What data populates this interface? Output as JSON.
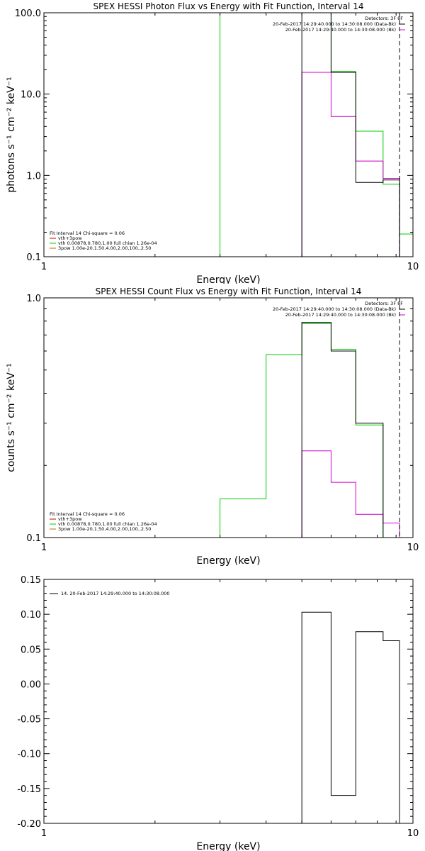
{
  "colors": {
    "black": "#000000",
    "magenta": "#cc00cc",
    "green": "#00cc00",
    "orange": "#cc6600",
    "red": "#cc0000"
  },
  "chart_data": [
    {
      "id": "photon",
      "type": "line",
      "title": "SPEX HESSI Photon Flux vs Energy with Fit Function, Interval 14",
      "xlabel": "Energy (keV)",
      "ylabel": "photons s⁻¹ cm⁻² keV⁻¹",
      "xscale": "log",
      "yscale": "log",
      "xlim": [
        1,
        10
      ],
      "ylim": [
        0.1,
        100
      ],
      "xticks": [
        {
          "v": 1,
          "label": "1"
        },
        {
          "v": 10,
          "label": "10"
        }
      ],
      "yticks": [
        {
          "v": 0.1,
          "label": "0.1"
        },
        {
          "v": 1,
          "label": "1.0"
        },
        {
          "v": 10,
          "label": "10.0"
        },
        {
          "v": 100,
          "label": "100.0"
        }
      ],
      "detectors_label": "Detectors: 3F 8F",
      "legend_right": [
        {
          "text": "20-Feb-2017 14:29:40.000 to 14:30:08.000 (Data-Bk)",
          "color": "#000000"
        },
        {
          "text": "20-Feb-2017 14:29:40.000 to 14:30:08.000 (Bk)",
          "color": "#cc00cc"
        }
      ],
      "fit_header": "Fit Interval 14   Chi-square = 0.06",
      "legend_left": [
        {
          "text": "vth+3pow",
          "color": "#cc0000"
        },
        {
          "text": "vth 0.00878,0.780,1.00  full chian 1.26e-04",
          "color": "#00cc00"
        },
        {
          "text": "3pow 1.00e-20,1.50,4.00,2.00,100.,2.50",
          "color": "#cc6600"
        }
      ],
      "vlines": [
        {
          "x": 9.2,
          "style": "dashed",
          "color": "#000000"
        }
      ],
      "series": [
        {
          "name": "Data-Bk",
          "color": "#000000",
          "edges": [
            5.0,
            6.0,
            7.0,
            8.3,
            9.2
          ],
          "values": [
            100,
            18.5,
            0.82,
            0.88
          ]
        },
        {
          "name": "Bk",
          "color": "#cc00cc",
          "edges": [
            5.0,
            6.0,
            7.0,
            8.3,
            9.2
          ],
          "values": [
            18.5,
            5.3,
            1.5,
            0.92
          ]
        },
        {
          "name": "vth+3pow",
          "color": "#00cc00",
          "edges": [
            3.0,
            5.0,
            6.0,
            7.0,
            8.3,
            9.2,
            10.0
          ],
          "values": [
            100,
            100,
            19.0,
            3.5,
            0.78,
            0.19
          ]
        }
      ]
    },
    {
      "id": "count",
      "type": "line",
      "title": "SPEX HESSI Count Flux vs Energy with Fit Function, Interval 14",
      "xlabel": "Energy (keV)",
      "ylabel": "counts s⁻¹ cm⁻² keV⁻¹",
      "xscale": "log",
      "yscale": "log",
      "xlim": [
        1,
        10
      ],
      "ylim": [
        0.1,
        1.0
      ],
      "xticks": [
        {
          "v": 1,
          "label": "1"
        },
        {
          "v": 10,
          "label": "10"
        }
      ],
      "yticks": [
        {
          "v": 0.1,
          "label": "0.1"
        },
        {
          "v": 1,
          "label": "1.0"
        }
      ],
      "detectors_label": "Detectors: 3F 8F",
      "legend_right": [
        {
          "text": "20-Feb-2017 14:29:40.000 to 14:30:08.000 (Data-Bk)",
          "color": "#000000"
        },
        {
          "text": "20-Feb-2017 14:29:40.000 to 14:30:08.000 (Bk)",
          "color": "#cc00cc"
        }
      ],
      "fit_header": "Fit Interval 14   Chi-square = 0.06",
      "legend_left": [
        {
          "text": "vth+3pow",
          "color": "#cc0000"
        },
        {
          "text": "vth 0.00878,0.780,1.00  full chian 1.26e-04",
          "color": "#00cc00"
        },
        {
          "text": "3pow 1.00e-20,1.50,4.00,2.00,100.,2.50",
          "color": "#cc6600"
        }
      ],
      "vlines": [
        {
          "x": 9.2,
          "style": "dashed",
          "color": "#000000"
        }
      ],
      "series": [
        {
          "name": "Data-Bk",
          "color": "#000000",
          "edges": [
            5.0,
            6.0,
            7.0,
            8.3,
            9.2
          ],
          "values": [
            0.79,
            0.6,
            0.3,
            0.1
          ]
        },
        {
          "name": "Bk",
          "color": "#cc00cc",
          "edges": [
            5.0,
            6.0,
            7.0,
            8.3,
            9.2
          ],
          "values": [
            0.23,
            0.17,
            0.125,
            0.115
          ]
        },
        {
          "name": "vth+3pow",
          "color": "#00cc00",
          "edges": [
            3.0,
            4.0,
            5.0,
            6.0,
            7.0,
            8.3,
            9.2
          ],
          "values": [
            0.145,
            0.58,
            0.78,
            0.61,
            0.295,
            0.1
          ]
        }
      ]
    },
    {
      "id": "resid",
      "type": "line",
      "title": "",
      "xlabel": "Energy (keV)",
      "ylabel": "",
      "xscale": "log",
      "yscale": "linear",
      "xlim": [
        1,
        10
      ],
      "ylim": [
        -0.2,
        0.15
      ],
      "xticks": [
        {
          "v": 1,
          "label": "1"
        },
        {
          "v": 10,
          "label": "10"
        }
      ],
      "yticks": [
        {
          "v": 0.15,
          "label": "0.15"
        },
        {
          "v": 0.1,
          "label": "0.10"
        },
        {
          "v": 0.05,
          "label": "0.05"
        },
        {
          "v": 0.0,
          "label": "0.00"
        },
        {
          "v": -0.05,
          "label": "-0.05"
        },
        {
          "v": -0.1,
          "label": "-0.10"
        },
        {
          "v": -0.15,
          "label": "-0.15"
        },
        {
          "v": -0.2,
          "label": "-0.20"
        }
      ],
      "legend_left_top": [
        {
          "text": "14. 20-Feb-2017 14:29:40.000 to 14:30:08.000",
          "color": "#000000"
        }
      ],
      "series": [
        {
          "name": "14. 20-Feb-2017 14:29:40.000 to 14:30:08.000",
          "color": "#000000",
          "edges": [
            5.0,
            6.0,
            7.0,
            8.3,
            9.2
          ],
          "values": [
            0.103,
            -0.16,
            0.075,
            0.062
          ]
        }
      ]
    }
  ]
}
